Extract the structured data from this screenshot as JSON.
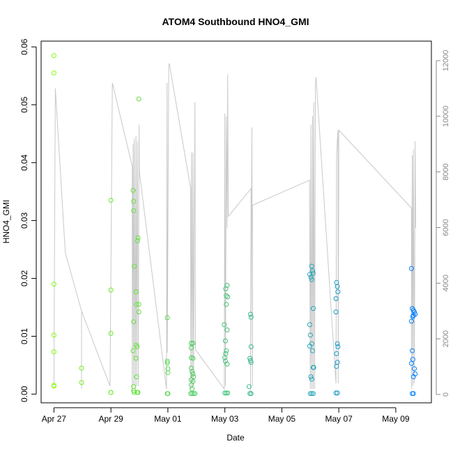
{
  "chart_data": {
    "type": "scatter",
    "title": "ATOM4 Southbound HNO4_GMI",
    "xlabel": "Date",
    "ylabel": "HNO4_GMI",
    "x_ticks": [
      "Apr 27",
      "Apr 29",
      "May 01",
      "May 03",
      "May 05",
      "May 07",
      "May 09"
    ],
    "x_tick_days": [
      0,
      2,
      4,
      6,
      8,
      10,
      12
    ],
    "xlim_days": [
      -0.45,
      13.25
    ],
    "ylim": [
      -0.0015,
      0.061
    ],
    "y_ticks": [
      "0.00",
      "0.01",
      "0.02",
      "0.03",
      "0.04",
      "0.05",
      "0.06"
    ],
    "y_tick_values": [
      0,
      0.01,
      0.02,
      0.03,
      0.04,
      0.05,
      0.06
    ],
    "y2lim": [
      -300,
      12700
    ],
    "y2_ticks": [
      "0",
      "2000",
      "4000",
      "6000",
      "8000",
      "10000",
      "12000"
    ],
    "y2_tick_values": [
      0,
      2000,
      4000,
      6000,
      8000,
      10000,
      12000
    ],
    "grid": false,
    "colors": {
      "point_start": "#80ff00",
      "point_end": "#0080ff",
      "altitude_line": "#c8c8c8",
      "axis": "#000000",
      "right_axis": "#888888"
    },
    "series": [
      {
        "values": [
          [
            0.0,
            0.0585
          ],
          [
            0.0,
            0.0555
          ],
          [
            0.0,
            0.019
          ],
          [
            0.0,
            0.0102
          ],
          [
            0.0,
            0.0073
          ],
          [
            0.0,
            0.0015
          ],
          [
            0.0,
            0.0014
          ],
          [
            0.97,
            0.0045
          ],
          [
            0.97,
            0.002
          ],
          [
            2.0,
            0.0335
          ],
          [
            2.0,
            0.018
          ],
          [
            2.0,
            0.0105
          ],
          [
            2.0,
            0.0003
          ],
          [
            2.0,
            0.0003
          ],
          [
            2.78,
            0.0352
          ],
          [
            2.8,
            0.0333
          ],
          [
            2.8,
            0.0317
          ],
          [
            2.82,
            0.0221
          ],
          [
            2.8,
            0.0125
          ],
          [
            2.78,
            0.0075
          ],
          [
            2.8,
            0.0013
          ],
          [
            2.8,
            0.0006
          ],
          [
            2.82,
            0.0003
          ],
          [
            2.88,
            0.0177
          ],
          [
            2.9,
            0.0155
          ],
          [
            2.88,
            0.0085
          ],
          [
            2.92,
            0.0082
          ],
          [
            2.88,
            0.0062
          ],
          [
            2.9,
            0.003
          ],
          [
            2.92,
            0.0003
          ],
          [
            2.95,
            0.0003
          ],
          [
            2.98,
            0.051
          ],
          [
            2.95,
            0.027
          ],
          [
            2.93,
            0.0265
          ],
          [
            2.98,
            0.0155
          ],
          [
            2.98,
            0.0142
          ],
          [
            3.98,
            0.0132
          ],
          [
            3.98,
            0.0057
          ],
          [
            3.98,
            0.0054
          ],
          [
            4.0,
            0.0044
          ],
          [
            4.0,
            0.0037
          ],
          [
            3.98,
            0.0001
          ],
          [
            4.0,
            0.0001
          ],
          [
            4.82,
            0.0088
          ],
          [
            4.88,
            0.0088
          ],
          [
            4.82,
            0.008
          ],
          [
            4.82,
            0.0063
          ],
          [
            4.88,
            0.0062
          ],
          [
            4.82,
            0.0045
          ],
          [
            4.85,
            0.0039
          ],
          [
            4.82,
            0.0025
          ],
          [
            4.88,
            0.0035
          ],
          [
            4.9,
            0.003
          ],
          [
            4.88,
            0.0022
          ],
          [
            4.82,
            0.0016
          ],
          [
            4.85,
            0.0009
          ],
          [
            4.8,
            0.0001
          ],
          [
            4.85,
            0.0001
          ],
          [
            4.9,
            0.0001
          ],
          [
            4.95,
            0.0001
          ],
          [
            5.98,
            0.012
          ],
          [
            6.03,
            0.0182
          ],
          [
            6.08,
            0.0188
          ],
          [
            6.05,
            0.017
          ],
          [
            6.1,
            0.0168
          ],
          [
            6.05,
            0.0155
          ],
          [
            6.08,
            0.0111
          ],
          [
            6.02,
            0.0092
          ],
          [
            6.05,
            0.0075
          ],
          [
            6.03,
            0.007
          ],
          [
            6.0,
            0.0063
          ],
          [
            6.02,
            0.0057
          ],
          [
            6.08,
            0.0052
          ],
          [
            6.0,
            0.0002
          ],
          [
            6.05,
            0.0002
          ],
          [
            6.1,
            0.0002
          ],
          [
            6.9,
            0.0138
          ],
          [
            6.92,
            0.0133
          ],
          [
            6.92,
            0.0082
          ],
          [
            6.88,
            0.0062
          ],
          [
            6.9,
            0.0058
          ],
          [
            6.92,
            0.0055
          ],
          [
            6.85,
            0.0013
          ],
          [
            6.88,
            0.0001
          ],
          [
            6.92,
            0.0001
          ],
          [
            8.98,
            0.0207
          ],
          [
            9.02,
            0.0202
          ],
          [
            9.05,
            0.0198
          ],
          [
            9.08,
            0.0213
          ],
          [
            9.05,
            0.0221
          ],
          [
            9.1,
            0.0209
          ],
          [
            9.1,
            0.0148
          ],
          [
            8.98,
            0.012
          ],
          [
            9.0,
            0.0102
          ],
          [
            8.98,
            0.0083
          ],
          [
            9.05,
            0.0087
          ],
          [
            9.08,
            0.0075
          ],
          [
            9.1,
            0.0046
          ],
          [
            9.12,
            0.0046
          ],
          [
            9.02,
            0.003
          ],
          [
            9.05,
            0.0026
          ],
          [
            9.0,
            0.0001
          ],
          [
            9.05,
            0.0001
          ],
          [
            9.1,
            0.0001
          ],
          [
            9.92,
            0.0193
          ],
          [
            9.95,
            0.0186
          ],
          [
            9.97,
            0.0177
          ],
          [
            9.9,
            0.0165
          ],
          [
            9.9,
            0.0142
          ],
          [
            9.95,
            0.0087
          ],
          [
            9.97,
            0.0082
          ],
          [
            9.92,
            0.007
          ],
          [
            9.95,
            0.0055
          ],
          [
            9.92,
            0.0048
          ],
          [
            9.9,
            0.0002
          ],
          [
            9.95,
            0.0002
          ],
          [
            12.55,
            0.0217
          ],
          [
            12.58,
            0.0148
          ],
          [
            12.62,
            0.0145
          ],
          [
            12.55,
            0.0126
          ],
          [
            12.65,
            0.0142
          ],
          [
            12.62,
            0.0136
          ],
          [
            12.68,
            0.0138
          ],
          [
            12.6,
            0.0134
          ],
          [
            12.58,
            0.0075
          ],
          [
            12.6,
            0.006
          ],
          [
            12.55,
            0.0053
          ],
          [
            12.65,
            0.0044
          ],
          [
            12.62,
            0.003
          ],
          [
            12.68,
            0.0035
          ],
          [
            12.58,
            0.0001
          ],
          [
            12.62,
            0.0001
          ]
        ]
      },
      {
        "values": [
          [
            0.0,
            300
          ],
          [
            0.02,
            5100
          ],
          [
            0.05,
            11000
          ],
          [
            0.4,
            5100
          ],
          [
            0.97,
            3000
          ],
          [
            0.97,
            200
          ],
          [
            0.97,
            3000
          ],
          [
            1.97,
            300
          ],
          [
            2.05,
            11200
          ],
          [
            2.75,
            8200
          ],
          [
            2.75,
            0
          ],
          [
            2.78,
            9000
          ],
          [
            2.8,
            300
          ],
          [
            2.82,
            9200
          ],
          [
            2.85,
            200
          ],
          [
            2.88,
            9300
          ],
          [
            2.9,
            300
          ],
          [
            2.93,
            9100
          ],
          [
            2.96,
            300
          ],
          [
            2.99,
            9700
          ],
          [
            3.0,
            8000
          ],
          [
            3.95,
            200
          ],
          [
            3.97,
            11200
          ],
          [
            3.98,
            1500
          ],
          [
            4.03,
            11800
          ],
          [
            4.05,
            11900
          ],
          [
            4.8,
            7400
          ],
          [
            4.8,
            200
          ],
          [
            4.83,
            8700
          ],
          [
            4.85,
            200
          ],
          [
            4.88,
            8700
          ],
          [
            4.9,
            300
          ],
          [
            4.95,
            10500
          ],
          [
            4.97,
            1600
          ],
          [
            5.98,
            200
          ],
          [
            6.0,
            10100
          ],
          [
            6.02,
            300
          ],
          [
            6.05,
            10000
          ],
          [
            6.08,
            6000
          ],
          [
            6.1,
            11500
          ],
          [
            6.12,
            6400
          ],
          [
            6.92,
            7400
          ],
          [
            6.9,
            0
          ],
          [
            6.95,
            9600
          ],
          [
            6.97,
            300
          ],
          [
            6.97,
            6800
          ],
          [
            8.97,
            7700
          ],
          [
            9.0,
            200
          ],
          [
            9.02,
            9700
          ],
          [
            9.05,
            200
          ],
          [
            9.08,
            10000
          ],
          [
            9.1,
            200
          ],
          [
            9.12,
            10500
          ],
          [
            9.15,
            200
          ],
          [
            9.18,
            11100
          ],
          [
            9.2,
            11400
          ],
          [
            9.9,
            400
          ],
          [
            9.92,
            8500
          ],
          [
            9.95,
            9200
          ],
          [
            9.97,
            9500
          ],
          [
            9.98,
            400
          ],
          [
            10.0,
            9500
          ],
          [
            12.55,
            6700
          ],
          [
            12.55,
            200
          ],
          [
            12.58,
            8600
          ],
          [
            12.6,
            300
          ],
          [
            12.62,
            8800
          ],
          [
            12.65,
            400
          ],
          [
            12.68,
            9100
          ],
          [
            12.7,
            6000
          ]
        ]
      }
    ]
  }
}
